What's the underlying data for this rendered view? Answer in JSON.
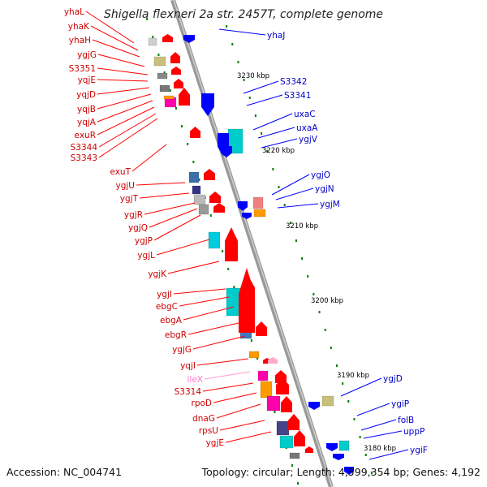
{
  "title": "Shigella flexneri 2a str. 2457T, complete genome",
  "footer": {
    "accession": "Accession: NC_004741",
    "summary": "Topology: circular; Length: 4,599,354 bp; Genes: 4,192"
  },
  "colors": {
    "forward": "#ff0000",
    "reverse": "#0000ff",
    "highlight": "#ff77cc",
    "backbone": "#999999",
    "tick": "#008000"
  },
  "kbp_markers": [
    "3230 kbp",
    "3220 kbp",
    "3210 kbp",
    "3200 kbp",
    "3190 kbp",
    "3180 kbp"
  ],
  "left_genes": [
    {
      "name": "yhaL",
      "highlight": false
    },
    {
      "name": "yhaK",
      "highlight": false
    },
    {
      "name": "yhaH",
      "highlight": false
    },
    {
      "name": "ygjG",
      "highlight": false
    },
    {
      "name": "S3351",
      "highlight": false
    },
    {
      "name": "yqjE",
      "highlight": false
    },
    {
      "name": "yqjD",
      "highlight": false
    },
    {
      "name": "yqjB",
      "highlight": false
    },
    {
      "name": "yqjA",
      "highlight": false
    },
    {
      "name": "exuR",
      "highlight": false
    },
    {
      "name": "S3344",
      "highlight": false
    },
    {
      "name": "S3343",
      "highlight": false
    },
    {
      "name": "exuT",
      "highlight": false
    },
    {
      "name": "ygjU",
      "highlight": false
    },
    {
      "name": "ygjT",
      "highlight": false
    },
    {
      "name": "ygjR",
      "highlight": false
    },
    {
      "name": "ygjQ",
      "highlight": false
    },
    {
      "name": "ygjP",
      "highlight": false
    },
    {
      "name": "ygjL",
      "highlight": false
    },
    {
      "name": "ygjK",
      "highlight": false
    },
    {
      "name": "ygjI",
      "highlight": false
    },
    {
      "name": "ebgC",
      "highlight": false
    },
    {
      "name": "ebgA",
      "highlight": false
    },
    {
      "name": "ebgR",
      "highlight": false
    },
    {
      "name": "ygjG",
      "highlight": false
    },
    {
      "name": "yqjI",
      "highlight": false
    },
    {
      "name": "ileX",
      "highlight": true
    },
    {
      "name": "S3314",
      "highlight": false
    },
    {
      "name": "rpoD",
      "highlight": false
    },
    {
      "name": "dnaG",
      "highlight": false
    },
    {
      "name": "rpsU",
      "highlight": false
    },
    {
      "name": "ygjE",
      "highlight": false
    }
  ],
  "right_genes": [
    {
      "name": "yhaJ"
    },
    {
      "name": "S3342"
    },
    {
      "name": "S3341"
    },
    {
      "name": "uxaC"
    },
    {
      "name": "uxaA"
    },
    {
      "name": "ygjV"
    },
    {
      "name": "ygjO"
    },
    {
      "name": "ygjN"
    },
    {
      "name": "ygjM"
    },
    {
      "name": "ygjD"
    },
    {
      "name": "ygiP"
    },
    {
      "name": "folB"
    },
    {
      "name": "uppP"
    },
    {
      "name": "ygiF"
    }
  ]
}
